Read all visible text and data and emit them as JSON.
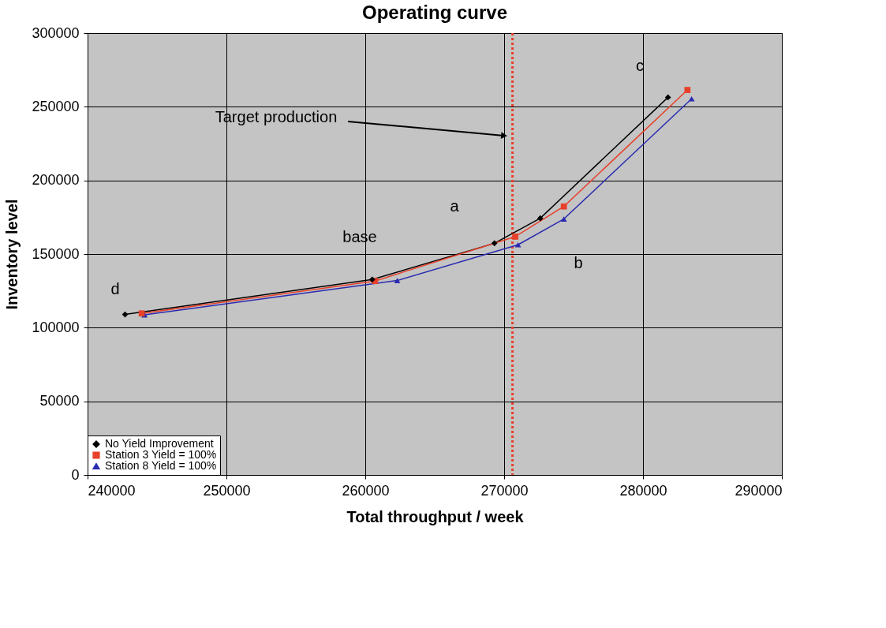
{
  "chart_data": {
    "type": "line",
    "title": "Operating curve",
    "xlabel": "Total throughput  / week",
    "ylabel": "Inventory level",
    "xlim": [
      240000,
      290000
    ],
    "xticks": [
      240000,
      250000,
      260000,
      270000,
      280000,
      290000
    ],
    "ylim": [
      0,
      300000
    ],
    "yticks": [
      0,
      50000,
      100000,
      150000,
      200000,
      250000,
      300000
    ],
    "grid": true,
    "legend": "bottom left",
    "series": [
      {
        "name": "No Yield Improvement",
        "color": "#000000",
        "marker": "diamond",
        "x": [
          242700,
          260500,
          269300,
          272600,
          281800
        ],
        "values": [
          109000,
          132700,
          157300,
          174300,
          256400
        ]
      },
      {
        "name": "Station 3 Yield = 100%",
        "color": "#e8402a",
        "marker": "square",
        "x": [
          243900,
          260700,
          270800,
          274300,
          283200
        ],
        "values": [
          109700,
          131700,
          161800,
          182300,
          261400
        ]
      },
      {
        "name": "Station 8 Yield = 100%",
        "color": "#2a2ab0",
        "marker": "triangle",
        "x": [
          244100,
          262300,
          271000,
          274300,
          283500
        ],
        "values": [
          108700,
          132000,
          156300,
          173800,
          255400
        ]
      }
    ],
    "ref_lines": [
      {
        "axis": "x",
        "value": 270600,
        "color": "#e8402a",
        "line_style": "dotted"
      }
    ],
    "annotations": [
      "Target production",
      "a",
      "b",
      "c",
      "d",
      "base"
    ]
  }
}
